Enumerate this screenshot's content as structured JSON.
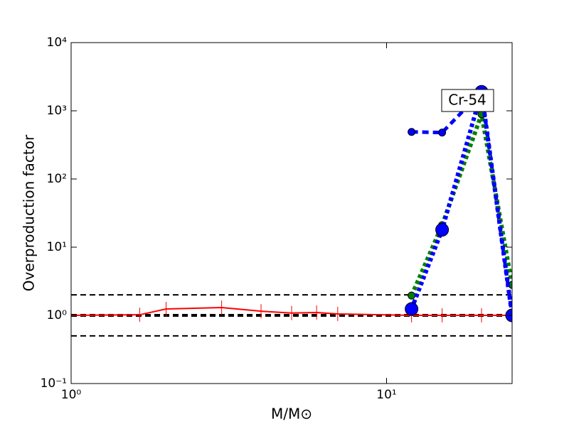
{
  "chart_data": {
    "type": "line",
    "log_x": true,
    "log_y": true,
    "xlabel": "M/M⊙",
    "ylabel": "Overproduction factor",
    "annotation": "Cr-54",
    "xlim": [
      1,
      25
    ],
    "ylim": [
      0.1,
      10000
    ],
    "xticks": [
      {
        "value": 1,
        "label": "10⁰"
      },
      {
        "value": 10,
        "label": "10¹"
      }
    ],
    "yticks": [
      {
        "value": 0.1,
        "label": "10⁻¹"
      },
      {
        "value": 1,
        "label": "10⁰"
      },
      {
        "value": 10,
        "label": "10¹"
      },
      {
        "value": 100,
        "label": "10²"
      },
      {
        "value": 1000,
        "label": "10³"
      },
      {
        "value": 10000,
        "label": "10⁴"
      }
    ],
    "reference_lines": [
      0.5,
      1,
      2
    ],
    "series": [
      {
        "color": "#ff0000",
        "style": "solid",
        "marker": "tick",
        "x": [
          1,
          1.65,
          2,
          3,
          4,
          5,
          6,
          7,
          12,
          15,
          20,
          25
        ],
        "values": [
          1.0,
          1.02,
          1.24,
          1.3,
          1.15,
          1.08,
          1.1,
          1.05,
          1.0,
          1.0,
          1.0,
          1.0
        ]
      },
      {
        "color": "#0000ff",
        "style": "dashed",
        "marker": "small-circle",
        "x": [
          12,
          15,
          20,
          25
        ],
        "values": [
          490,
          480,
          1900,
          1.0
        ]
      },
      {
        "color": "#008000",
        "style": "dotted",
        "marker": "small-circle",
        "x": [
          12,
          15,
          20,
          25
        ],
        "values": [
          1.95,
          21,
          890,
          2.8
        ]
      },
      {
        "color": "#0000ff",
        "style": "dotted",
        "marker": "large-circle",
        "x": [
          12,
          15,
          20,
          25
        ],
        "values": [
          1.24,
          18,
          1900,
          1.0
        ]
      }
    ]
  }
}
